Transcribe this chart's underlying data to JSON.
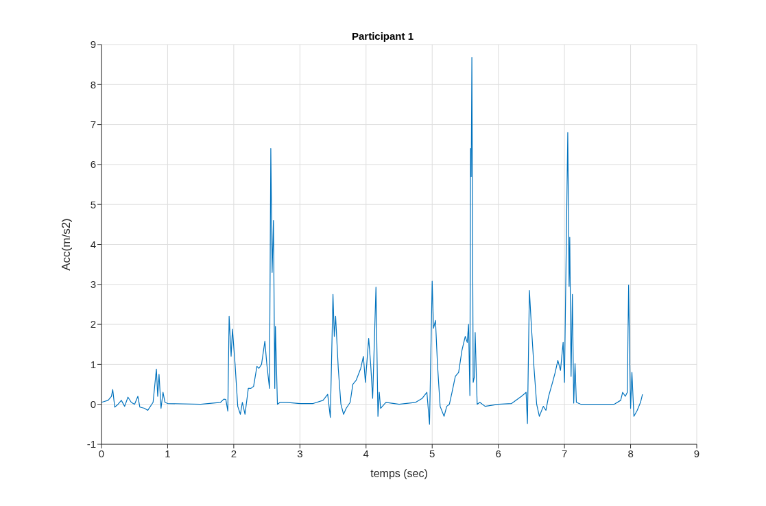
{
  "chart_data": {
    "type": "line",
    "title": "Participant 1",
    "xlabel": "temps (sec)",
    "ylabel": "Acc(m/s2)",
    "xlim": [
      0,
      9
    ],
    "xticks": [
      0,
      1,
      2,
      3,
      4,
      5,
      6,
      7,
      8,
      9
    ],
    "ylim": [
      -1,
      9
    ],
    "yticks": [
      -1,
      0,
      1,
      2,
      3,
      4,
      5,
      6,
      7,
      8,
      9
    ],
    "grid": true,
    "marker": "none",
    "line_style": "solid",
    "series": [
      {
        "color": "#0072bd",
        "x": [
          0,
          0.1,
          0.15,
          0.17,
          0.2,
          0.25,
          0.3,
          0.35,
          0.4,
          0.45,
          0.5,
          0.55,
          0.58,
          0.65,
          0.7,
          0.78,
          0.83,
          0.85,
          0.87,
          0.9,
          0.93,
          0.96,
          1.0,
          1.5,
          1.8,
          1.85,
          1.88,
          1.91,
          1.93,
          1.96,
          1.98,
          2.02,
          2.06,
          2.1,
          2.13,
          2.17,
          2.22,
          2.26,
          2.3,
          2.35,
          2.38,
          2.42,
          2.47,
          2.5,
          2.54,
          2.56,
          2.58,
          2.6,
          2.62,
          2.63,
          2.66,
          2.7,
          2.8,
          3.0,
          3.2,
          3.35,
          3.42,
          3.46,
          3.5,
          3.52,
          3.54,
          3.58,
          3.62,
          3.66,
          3.7,
          3.76,
          3.8,
          3.85,
          3.92,
          3.96,
          3.99,
          4.04,
          4.07,
          4.1,
          4.15,
          4.18,
          4.2,
          4.22,
          4.3,
          4.5,
          4.75,
          4.85,
          4.92,
          4.96,
          5.0,
          5.02,
          5.05,
          5.08,
          5.12,
          5.18,
          5.22,
          5.26,
          5.3,
          5.35,
          5.4,
          5.45,
          5.5,
          5.53,
          5.55,
          5.57,
          5.58,
          5.59,
          5.6,
          5.62,
          5.64,
          5.65,
          5.68,
          5.72,
          5.8,
          6.0,
          6.2,
          6.35,
          6.42,
          6.44,
          6.47,
          6.5,
          6.54,
          6.58,
          6.62,
          6.68,
          6.72,
          6.76,
          6.82,
          6.86,
          6.9,
          6.94,
          6.98,
          7.0,
          7.05,
          7.07,
          7.08,
          7.1,
          7.12,
          7.14,
          7.16,
          7.18,
          7.25,
          7.5,
          7.75,
          7.85,
          7.88,
          7.92,
          7.95,
          7.97,
          7.99,
          8.0,
          8.02,
          8.05,
          8.1,
          8.15,
          8.18
        ],
        "values": [
          0.05,
          0.1,
          0.2,
          0.37,
          -0.07,
          0.0,
          0.1,
          -0.05,
          0.18,
          0.05,
          0.0,
          0.2,
          -0.07,
          -0.1,
          -0.15,
          0.05,
          0.88,
          0.2,
          0.75,
          -0.1,
          0.3,
          0.05,
          0.02,
          0.0,
          0.05,
          0.13,
          0.12,
          -0.17,
          2.2,
          1.2,
          1.88,
          1.0,
          -0.05,
          -0.25,
          0.05,
          -0.25,
          0.4,
          0.4,
          0.45,
          0.95,
          0.9,
          1.0,
          1.58,
          1.0,
          0.4,
          6.4,
          3.3,
          4.6,
          0.4,
          1.95,
          0.0,
          0.05,
          0.05,
          0.02,
          0.02,
          0.1,
          0.25,
          -0.33,
          2.75,
          1.7,
          2.2,
          0.9,
          0.0,
          -0.25,
          -0.1,
          0.05,
          0.5,
          0.6,
          0.9,
          1.2,
          0.55,
          1.65,
          1.0,
          0.15,
          2.93,
          -0.3,
          0.3,
          -0.1,
          0.05,
          0.0,
          0.05,
          0.15,
          0.3,
          -0.5,
          3.08,
          1.9,
          2.1,
          1.0,
          -0.05,
          -0.3,
          -0.05,
          0.0,
          0.3,
          0.7,
          0.8,
          1.35,
          1.7,
          1.55,
          2.0,
          0.22,
          6.4,
          5.7,
          8.68,
          0.55,
          0.7,
          1.8,
          0.0,
          0.05,
          -0.05,
          0.0,
          0.02,
          0.2,
          0.3,
          -0.48,
          2.85,
          1.95,
          0.9,
          0.0,
          -0.3,
          -0.05,
          -0.15,
          0.2,
          0.55,
          0.8,
          1.1,
          0.85,
          1.55,
          0.55,
          6.8,
          2.95,
          4.18,
          0.7,
          2.75,
          0.03,
          1.02,
          0.05,
          0.0,
          0.0,
          0.0,
          0.1,
          0.3,
          0.2,
          0.3,
          2.98,
          0.8,
          -0.1,
          0.8,
          -0.3,
          -0.15,
          0.05,
          0.25
        ]
      }
    ]
  }
}
